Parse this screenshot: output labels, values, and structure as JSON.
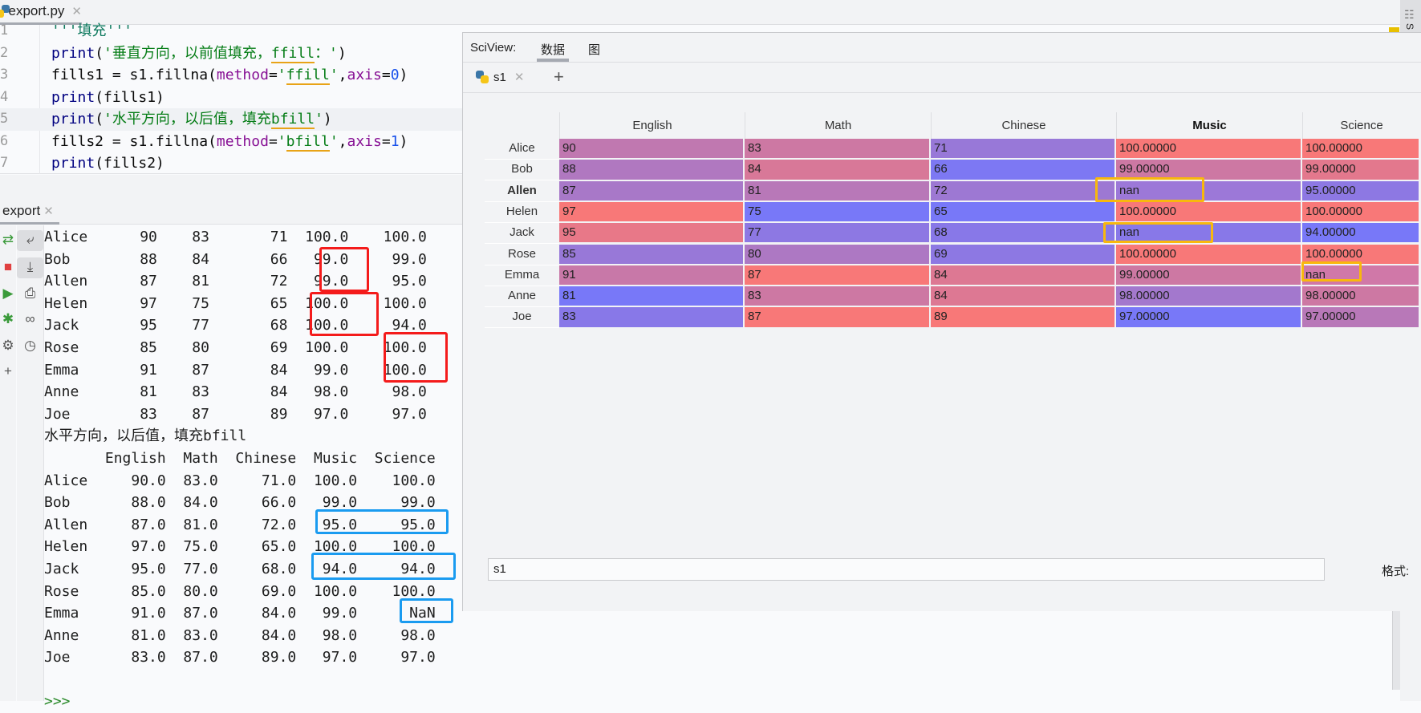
{
  "editor": {
    "file_tab": "export.py",
    "lines": [
      {
        "n": "1",
        "seg": [
          {
            "t": "'''填充'''",
            "c": "c-doc"
          }
        ]
      },
      {
        "n": "2",
        "seg": [
          {
            "t": "print",
            "c": "c-fn"
          },
          {
            "t": "(",
            "c": "c-plain"
          },
          {
            "t": "'垂直方向，以前值填充，",
            "c": "c-str"
          },
          {
            "t": "ffill",
            "c": "c-str typo"
          },
          {
            "t": "：'",
            "c": "c-str"
          },
          {
            "t": ")",
            "c": "c-plain"
          }
        ]
      },
      {
        "n": "3",
        "seg": [
          {
            "t": "fills1 = s1.fillna(",
            "c": "c-plain"
          },
          {
            "t": "method",
            "c": "c-param"
          },
          {
            "t": "=",
            "c": "c-plain"
          },
          {
            "t": "'",
            "c": "c-str"
          },
          {
            "t": "ffill",
            "c": "c-str typo"
          },
          {
            "t": "'",
            "c": "c-str"
          },
          {
            "t": ",",
            "c": "c-plain"
          },
          {
            "t": "axis",
            "c": "c-param"
          },
          {
            "t": "=",
            "c": "c-plain"
          },
          {
            "t": "0",
            "c": "c-num"
          },
          {
            "t": ")",
            "c": "c-plain"
          }
        ]
      },
      {
        "n": "4",
        "seg": [
          {
            "t": "print",
            "c": "c-fn"
          },
          {
            "t": "(fills1)",
            "c": "c-plain"
          }
        ]
      },
      {
        "n": "5",
        "seg": [
          {
            "t": "print",
            "c": "c-fn"
          },
          {
            "t": "(",
            "c": "c-plain"
          },
          {
            "t": "'水平方向，以后值，填充",
            "c": "c-str"
          },
          {
            "t": "bfill",
            "c": "c-str typo"
          },
          {
            "t": "'",
            "c": "c-str"
          },
          {
            "t": ")",
            "c": "c-plain"
          }
        ],
        "highlight": true
      },
      {
        "n": "6",
        "seg": [
          {
            "t": "fills2 = s1.fillna(",
            "c": "c-plain"
          },
          {
            "t": "method",
            "c": "c-param"
          },
          {
            "t": "=",
            "c": "c-plain"
          },
          {
            "t": "'",
            "c": "c-str"
          },
          {
            "t": "bfill",
            "c": "c-str typo"
          },
          {
            "t": "'",
            "c": "c-str"
          },
          {
            "t": ",",
            "c": "c-plain"
          },
          {
            "t": "axis",
            "c": "c-param"
          },
          {
            "t": "=",
            "c": "c-plain"
          },
          {
            "t": "1",
            "c": "c-num"
          },
          {
            "t": ")",
            "c": "c-plain"
          }
        ]
      },
      {
        "n": "7",
        "seg": [
          {
            "t": "print",
            "c": "c-fn"
          },
          {
            "t": "(fills2)",
            "c": "c-plain"
          }
        ]
      }
    ]
  },
  "console": {
    "tab": "export",
    "lines": [
      "Alice      90    83       71  100.0    100.0",
      "Bob        88    84       66   99.0     99.0",
      "Allen      87    81       72   99.0     95.0",
      "Helen      97    75       65  100.0    100.0",
      "Jack       95    77       68  100.0     94.0",
      "Rose       85    80       69  100.0    100.0",
      "Emma       91    87       84   99.0    100.0",
      "Anne       81    83       84   98.0     98.0",
      "Joe        83    87       89   97.0     97.0",
      "水平方向，以后值，填充bfill",
      "       English  Math  Chinese  Music  Science",
      "Alice     90.0  83.0     71.0  100.0    100.0",
      "Bob       88.0  84.0     66.0   99.0     99.0",
      "Allen     87.0  81.0     72.0   95.0     95.0",
      "Helen     97.0  75.0     65.0  100.0    100.0",
      "Jack      95.0  77.0     68.0   94.0     94.0",
      "Rose      85.0  80.0     69.0  100.0    100.0",
      "Emma      91.0  87.0     84.0   99.0      NaN",
      "Anne      81.0  83.0     84.0   98.0     98.0",
      "Joe       83.0  87.0     89.0   97.0     97.0",
      "",
      ">>>"
    ]
  },
  "sciview": {
    "label": "SciView:",
    "tabs": [
      "数据",
      "图"
    ],
    "active_tab": "数据",
    "variable_tab": "s1",
    "add_label": "+",
    "expression": "s1",
    "format_label": "格式:",
    "colors": {
      "low": "#7878f8",
      "high": "#f87878",
      "highlight_box": "#f8b80d"
    },
    "table": {
      "columns": [
        "English",
        "Math",
        "Chinese",
        "Music",
        "Science"
      ],
      "bold_column": "Music",
      "rows": [
        {
          "name": "Alice",
          "cells": [
            "90",
            "83",
            "71",
            "100.00000",
            "100.00000"
          ]
        },
        {
          "name": "Bob",
          "cells": [
            "88",
            "84",
            "66",
            "99.00000",
            "99.00000"
          ]
        },
        {
          "name": "Allen",
          "bold": true,
          "cells": [
            "87",
            "81",
            "72",
            "nan",
            "95.00000"
          ],
          "nan_colors": {
            "3": "#9c78d8"
          }
        },
        {
          "name": "Helen",
          "cells": [
            "97",
            "75",
            "65",
            "100.00000",
            "100.00000"
          ]
        },
        {
          "name": "Jack",
          "cells": [
            "95",
            "77",
            "68",
            "nan",
            "94.00000"
          ],
          "nan_colors": {
            "3": "#8878e8"
          }
        },
        {
          "name": "Rose",
          "cells": [
            "85",
            "80",
            "69",
            "100.00000",
            "100.00000"
          ]
        },
        {
          "name": "Emma",
          "cells": [
            "91",
            "87",
            "84",
            "99.00000",
            "nan"
          ],
          "nan_colors": {
            "4": "#d078a8"
          }
        },
        {
          "name": "Anne",
          "cells": [
            "81",
            "83",
            "84",
            "98.00000",
            "98.00000"
          ]
        },
        {
          "name": "Joe",
          "cells": [
            "83",
            "87",
            "89",
            "97.00000",
            "97.00000"
          ]
        }
      ]
    }
  },
  "annotations": {
    "red": "#f41b1b",
    "blue": "#1a9bf0"
  }
}
